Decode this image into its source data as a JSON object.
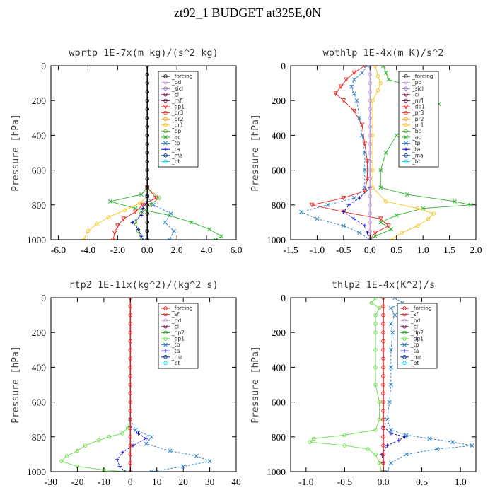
{
  "figure_title": "zt92_1  BUDGET at325E,0N",
  "colors": {
    "forcing": "#111111",
    "pd": "#c9a0dc",
    "sicl": "#8e6fc2",
    "cl": "#7a1f4e",
    "mfl": "#7a1f4e",
    "dp1": "#e8231e",
    "pr3": "#ff3030",
    "pr2": "#f5a623",
    "pr1": "#f5c518",
    "bp": "#60b030",
    "ac": "#2db32d",
    "tp": "#2a7fc4",
    "ta": "#1010d0",
    "ma": "#0b3a8a",
    "bt": "#19c9e0",
    "sf": "#e03030",
    "dp2": "#22aa22",
    "dp1_green": "#66dd44",
    "forcing_red": "#dd2222"
  },
  "chart_data": [
    {
      "type": "line",
      "title": "wprtp   1E-7x(m kg)/(s^2 kg)",
      "ylabel": "Pressure [hPa]",
      "xlim": [
        -6.5,
        6.0
      ],
      "ylim": [
        1000,
        0
      ],
      "xticks": [
        "-6.0",
        "-4.0",
        "-2.0",
        "0.0",
        "2.0",
        "4.0",
        "6.0"
      ],
      "xtick_values": [
        -6,
        -4,
        -2,
        0,
        2,
        4,
        6
      ],
      "yticks": [
        "0",
        "200",
        "400",
        "600",
        "800",
        "1000"
      ],
      "ytick_values": [
        0,
        200,
        400,
        600,
        800,
        1000
      ],
      "legend": [
        "_forcing",
        "_pd",
        "_sicl",
        "_cl",
        "_mfl",
        "_dp1",
        "_pr3",
        "_pr2",
        "_pr1",
        "_bp",
        "_ac",
        "_tp",
        "_ta",
        "_ma",
        "_bt"
      ],
      "series": [
        {
          "name": "_ac",
          "color": "#2db32d",
          "marker": "x",
          "y": [
            700,
            740,
            780,
            820,
            860,
            900,
            940,
            980,
            1000
          ],
          "x": [
            0.0,
            -0.4,
            -2.5,
            -0.8,
            1.5,
            3.0,
            4.2,
            5.0,
            4.6
          ]
        },
        {
          "name": "_pr1",
          "color": "#f5c518",
          "marker": "o",
          "y": [
            750,
            790,
            830,
            870,
            910,
            950,
            1000
          ],
          "x": [
            0.0,
            -0.5,
            -1.5,
            -2.6,
            -3.4,
            -4.0,
            -4.3
          ]
        },
        {
          "name": "_dp1",
          "color": "#e8231e",
          "marker": "v",
          "y": [
            700,
            760,
            800,
            840,
            880,
            920,
            960,
            1000
          ],
          "x": [
            0.0,
            0.6,
            -0.3,
            -0.8,
            -1.6,
            -2.0,
            -2.2,
            -2.3
          ]
        },
        {
          "name": "_bp",
          "color": "#60b030",
          "marker": "o",
          "y": [
            700,
            760,
            800,
            850,
            900,
            950,
            1000
          ],
          "x": [
            0.0,
            0.8,
            0.2,
            -0.4,
            -0.8,
            -0.6,
            -0.4
          ]
        },
        {
          "name": "_tp",
          "color": "#2a7fc4",
          "marker": "x",
          "y": [
            750,
            800,
            850,
            900,
            950,
            1000
          ],
          "x": [
            0.0,
            0.4,
            1.6,
            1.2,
            1.8,
            1.5
          ]
        },
        {
          "name": "_ta",
          "color": "#1010d0",
          "marker": "+",
          "y": [
            780,
            820,
            860,
            900,
            940,
            980,
            1000
          ],
          "x": [
            0.0,
            -0.3,
            -0.4,
            -1.0,
            -0.6,
            -0.4,
            -0.3
          ]
        },
        {
          "name": "_forcing",
          "color": "#111111",
          "marker": "o",
          "y": [
            0,
            50,
            100,
            150,
            200,
            250,
            300,
            350,
            400,
            450,
            500,
            550,
            600,
            650,
            700,
            750,
            800,
            850,
            900,
            950,
            1000
          ],
          "x": [
            0,
            0,
            0,
            0,
            0,
            0,
            0,
            0,
            0,
            0,
            0,
            0,
            0,
            0,
            0,
            0,
            0,
            0,
            0,
            0,
            0
          ]
        }
      ]
    },
    {
      "type": "line",
      "title": "wpthlp   1E-4x(m K)/s^2",
      "ylabel": "Pressure [hPa]",
      "xlim": [
        -1.5,
        2.0
      ],
      "ylim": [
        1000,
        0
      ],
      "xticks": [
        "-1.5",
        "-1.0",
        "-0.5",
        "0.0",
        "0.5",
        "1.0",
        "1.5",
        "2.0"
      ],
      "xtick_values": [
        -1.5,
        -1.0,
        -0.5,
        0.0,
        0.5,
        1.0,
        1.5,
        2.0
      ],
      "yticks": [
        "0",
        "200",
        "400",
        "600",
        "800",
        "1000"
      ],
      "ytick_values": [
        0,
        200,
        400,
        600,
        800,
        1000
      ],
      "legend": [
        "_forcing",
        "_pd",
        "_sicl",
        "_cl",
        "_mfl",
        "_dp1",
        "_pr3",
        "_pr2",
        "_pr1",
        "_bp",
        "_ac",
        "_tp",
        "_ta",
        "_ma",
        "_bt"
      ],
      "series": [
        {
          "name": "_ac",
          "color": "#2db32d",
          "marker": "x",
          "y": [
            0,
            40,
            80,
            120,
            160,
            220,
            300,
            400,
            500,
            600,
            700,
            740,
            780,
            800,
            820,
            860,
            900,
            940,
            980,
            1000
          ],
          "x": [
            0.25,
            0.3,
            0.35,
            0.8,
            1.2,
            1.3,
            0.9,
            0.5,
            0.3,
            0.2,
            0.2,
            0.7,
            1.6,
            1.9,
            1.0,
            0.5,
            0.2,
            0.4,
            0.1,
            0.0
          ]
        },
        {
          "name": "_dp1",
          "color": "#e8231e",
          "marker": "v",
          "y": [
            0,
            40,
            80,
            120,
            160,
            200,
            260,
            340,
            450,
            550,
            650,
            720,
            760,
            800,
            840,
            880,
            920,
            960,
            1000
          ],
          "x": [
            -0.1,
            -0.3,
            -0.45,
            -0.55,
            -0.65,
            -0.5,
            -0.3,
            -0.15,
            -0.1,
            -0.05,
            -0.05,
            -0.1,
            -0.5,
            -1.1,
            -0.5,
            0.2,
            0.35,
            0.1,
            0.0
          ]
        },
        {
          "name": "_tp",
          "color": "#2a7fc4",
          "marker": "x",
          "y": [
            0,
            40,
            80,
            120,
            160,
            200,
            300,
            400,
            500,
            600,
            700,
            760,
            800,
            840,
            880,
            920,
            960,
            1000
          ],
          "x": [
            -0.05,
            -0.15,
            -0.3,
            -0.35,
            -0.3,
            -0.25,
            -0.2,
            -0.15,
            -0.1,
            -0.1,
            -0.1,
            -0.3,
            -0.8,
            -1.3,
            -1.0,
            -0.5,
            -0.2,
            0.0
          ]
        },
        {
          "name": "_pr1",
          "color": "#f5c518",
          "marker": "o",
          "y": [
            0,
            60,
            100,
            140,
            200,
            400,
            600,
            700,
            780,
            820,
            850,
            880,
            920,
            960,
            1000
          ],
          "x": [
            0.1,
            0.15,
            0.2,
            0.15,
            0.05,
            0.05,
            0.05,
            0.05,
            0.3,
            0.9,
            1.2,
            1.1,
            0.9,
            0.6,
            0.4
          ]
        },
        {
          "name": "_ta",
          "color": "#1010d0",
          "marker": "+",
          "y": [
            700,
            760,
            800,
            840,
            880,
            920,
            960,
            1000
          ],
          "x": [
            0.0,
            -0.2,
            -0.4,
            -0.5,
            -0.3,
            -0.1,
            -0.05,
            0.0
          ]
        },
        {
          "name": "_pd",
          "color": "#c9a0dc",
          "marker": "o",
          "y": [
            0,
            50,
            100,
            150,
            200,
            250,
            300,
            350,
            400,
            450,
            500,
            550,
            600,
            650,
            700,
            750,
            800,
            850,
            900,
            950,
            1000
          ],
          "x": [
            0,
            0,
            0,
            0,
            0,
            0,
            0,
            0,
            0,
            0,
            0,
            0,
            0,
            0,
            0,
            0,
            0,
            0,
            0,
            0,
            0
          ]
        }
      ]
    },
    {
      "type": "line",
      "title": "rtp2   1E-11x(kg^2)/(kg^2 s)",
      "ylabel": "Pressure [hPa]",
      "xlim": [
        -30,
        40
      ],
      "ylim": [
        1000,
        0
      ],
      "xticks": [
        "-30",
        "-20",
        "-10",
        "0",
        "10",
        "20",
        "30",
        "40"
      ],
      "xtick_values": [
        -30,
        -20,
        -10,
        0,
        10,
        20,
        30,
        40
      ],
      "yticks": [
        "0",
        "200",
        "400",
        "600",
        "800",
        "1000"
      ],
      "ytick_values": [
        0,
        200,
        400,
        600,
        800,
        1000
      ],
      "legend": [
        "_forcing",
        "_sf",
        "_pd",
        "_cl",
        "_dp2",
        "_dp1",
        "_tp",
        "_ta",
        "_ma",
        "_bt"
      ],
      "series": [
        {
          "name": "_dp1",
          "color": "#66dd44",
          "marker": "o",
          "y": [
            700,
            750,
            780,
            800,
            820,
            850,
            880,
            910,
            940,
            970,
            990,
            1000
          ],
          "x": [
            0,
            -1,
            -3,
            -8,
            -12,
            -17,
            -20,
            -24,
            -26,
            -20,
            -10,
            -2
          ]
        },
        {
          "name": "_tp",
          "color": "#2a7fc4",
          "marker": "x",
          "y": [
            700,
            760,
            800,
            840,
            880,
            910,
            940,
            970,
            1000
          ],
          "x": [
            0,
            2,
            8,
            6,
            15,
            25,
            30,
            20,
            8
          ]
        },
        {
          "name": "_ta",
          "color": "#1010d0",
          "marker": "+",
          "y": [
            740,
            780,
            810,
            850,
            890,
            930,
            970,
            1000
          ],
          "x": [
            0,
            3,
            6,
            1,
            -3,
            -5,
            -4,
            -2
          ]
        },
        {
          "name": "_forcing",
          "color": "#dd2222",
          "marker": "o",
          "y": [
            0,
            50,
            100,
            150,
            200,
            250,
            300,
            350,
            400,
            450,
            500,
            550,
            600,
            650,
            700,
            750,
            800,
            850,
            900,
            950,
            1000
          ],
          "x": [
            0,
            0,
            0,
            0,
            0,
            0,
            0,
            0,
            0,
            0,
            0,
            0,
            0,
            0,
            0,
            0,
            0,
            0,
            0,
            0,
            0
          ]
        }
      ]
    },
    {
      "type": "line",
      "title": "thlp2   1E-4x(K^2)/s",
      "ylabel": "Pressure [hPa]",
      "xlim": [
        -1.2,
        1.2
      ],
      "ylim": [
        1000,
        0
      ],
      "xticks": [
        "-1.0",
        "-0.5",
        "0.0",
        "0.5",
        "1.0"
      ],
      "xtick_values": [
        -1.0,
        -0.5,
        0.0,
        0.5,
        1.0
      ],
      "yticks": [
        "0",
        "200",
        "400",
        "600",
        "800",
        "1000"
      ],
      "ytick_values": [
        0,
        200,
        400,
        600,
        800,
        1000
      ],
      "legend": [
        "_forcing",
        "_sf",
        "_pd",
        "_cl",
        "_dp2",
        "_dp1",
        "_tp",
        "_ta",
        "_ma",
        "_bt"
      ],
      "series": [
        {
          "name": "_dp1",
          "color": "#66dd44",
          "marker": "o",
          "y": [
            0,
            30,
            60,
            100,
            150,
            200,
            300,
            400,
            500,
            600,
            700,
            760,
            790,
            810,
            830,
            850,
            870,
            900,
            950,
            1000
          ],
          "x": [
            -0.1,
            -0.15,
            -0.05,
            -0.1,
            -0.1,
            -0.1,
            -0.1,
            -0.1,
            -0.1,
            -0.05,
            -0.05,
            -0.1,
            -0.5,
            -0.9,
            -0.95,
            -0.5,
            -0.2,
            -0.1,
            -0.05,
            -0.02
          ]
        },
        {
          "name": "_tp",
          "color": "#2a7fc4",
          "marker": "x",
          "y": [
            0,
            30,
            60,
            100,
            150,
            200,
            300,
            400,
            500,
            600,
            700,
            760,
            790,
            810,
            830,
            850,
            870,
            900,
            950,
            1000
          ],
          "x": [
            0.15,
            0.25,
            0.1,
            0.15,
            0.1,
            0.12,
            0.1,
            0.1,
            0.1,
            0.08,
            0.05,
            0.1,
            0.3,
            0.6,
            0.9,
            1.15,
            0.7,
            0.3,
            0.1,
            0.05
          ]
        },
        {
          "name": "_ta",
          "color": "#1010d0",
          "marker": "+",
          "y": [
            740,
            780,
            800,
            820,
            850,
            900,
            950,
            1000
          ],
          "x": [
            0.0,
            0.1,
            0.28,
            0.2,
            0.05,
            -0.02,
            0.0,
            0.0
          ]
        },
        {
          "name": "_forcing",
          "color": "#dd2222",
          "marker": "o",
          "y": [
            0,
            50,
            100,
            150,
            200,
            250,
            300,
            350,
            400,
            450,
            500,
            550,
            600,
            650,
            700,
            750,
            800,
            850,
            900,
            950,
            1000
          ],
          "x": [
            0,
            0,
            0,
            0,
            0,
            0,
            0,
            0,
            0,
            0,
            0,
            0,
            0,
            0,
            0,
            0,
            0,
            0,
            0,
            0,
            0
          ]
        }
      ]
    }
  ]
}
